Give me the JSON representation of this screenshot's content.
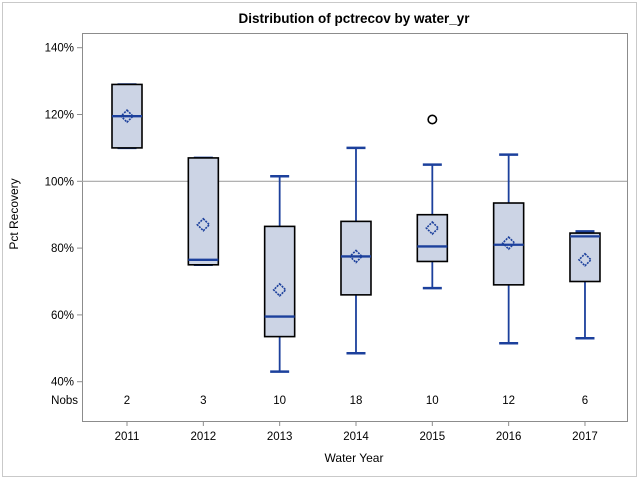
{
  "chart_data": {
    "type": "boxplot",
    "title": "Distribution of pctrecov by water_yr",
    "xlabel": "Water Year",
    "ylabel": "Pct Recovery",
    "nobs_label": "Nobs",
    "y_axis": {
      "min": 40,
      "max": 140,
      "tick_step": 20,
      "tick_values": [
        140,
        120,
        100,
        80,
        60,
        40
      ],
      "tick_labels": [
        "140%",
        "120%",
        "100%",
        "80%",
        "60%",
        "40%"
      ]
    },
    "reference_line": 100,
    "categories": [
      "2011",
      "2012",
      "2013",
      "2014",
      "2015",
      "2016",
      "2017"
    ],
    "nobs": [
      "2",
      "3",
      "10",
      "18",
      "10",
      "12",
      "6"
    ],
    "series": [
      {
        "category": "2011",
        "n": 2,
        "min": 110,
        "q1": 110,
        "median": 119.5,
        "q3": 129,
        "max": 129,
        "mean": 119.5,
        "outliers": []
      },
      {
        "category": "2012",
        "n": 3,
        "min": 75,
        "q1": 75,
        "median": 76.5,
        "q3": 107,
        "max": 107,
        "mean": 87,
        "outliers": []
      },
      {
        "category": "2013",
        "n": 10,
        "min": 43,
        "q1": 53.5,
        "median": 59.5,
        "q3": 86.5,
        "max": 101.5,
        "mean": 67.5,
        "outliers": []
      },
      {
        "category": "2014",
        "n": 18,
        "min": 48.5,
        "q1": 66,
        "median": 77.5,
        "q3": 88,
        "max": 110,
        "mean": 77.5,
        "outliers": []
      },
      {
        "category": "2015",
        "n": 10,
        "min": 68,
        "q1": 76,
        "median": 80.5,
        "q3": 90,
        "max": 105,
        "mean": 86,
        "outliers": [
          118.5
        ]
      },
      {
        "category": "2016",
        "n": 12,
        "min": 51.5,
        "q1": 69,
        "median": 81,
        "q3": 93.5,
        "max": 108,
        "mean": 81.5,
        "outliers": []
      },
      {
        "category": "2017",
        "n": 6,
        "min": 53,
        "q1": 70,
        "median": 83.5,
        "q3": 84.5,
        "max": 85,
        "mean": 76.5,
        "outliers": []
      }
    ],
    "colors": {
      "box_fill": "#ccd4e5",
      "box_border": "#000000",
      "whisker": "#1c409c",
      "median": "#1c409c",
      "mean_marker": "#1c409c",
      "outlier": "#000000",
      "reference_line": "#a6a6a6",
      "frame": "#8c8c8c",
      "text": "#000000",
      "background": "#ffffff",
      "outer_border": "#c9c9c9"
    },
    "legend": "none",
    "grid": "off"
  }
}
